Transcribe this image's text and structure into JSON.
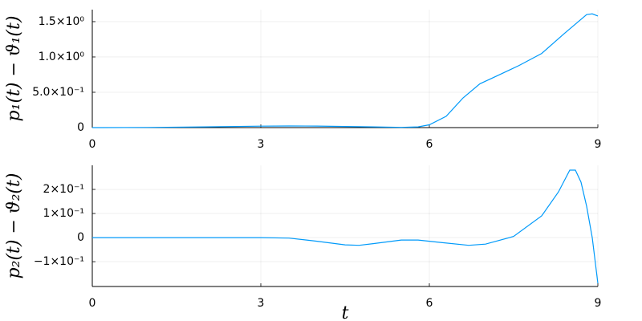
{
  "chart_data": [
    {
      "type": "line",
      "ylabel": "p₁(t) − ϑ₁(t)",
      "color": "#009afa",
      "grid": true,
      "x": [
        0,
        1,
        2,
        3,
        3.5,
        4,
        5,
        5.5,
        5.8,
        6,
        6.3,
        6.6,
        6.9,
        7.2,
        7.6,
        8,
        8.4,
        8.8,
        8.9,
        9
      ],
      "values": [
        0,
        0.002,
        0.01,
        0.02,
        0.023,
        0.022,
        0.01,
        0.003,
        0.01,
        0.04,
        0.16,
        0.42,
        0.62,
        0.73,
        0.88,
        1.05,
        1.33,
        1.6,
        1.61,
        1.58
      ],
      "xlim": [
        0,
        9
      ],
      "xticks": [
        0,
        3,
        6,
        9
      ],
      "ylim": [
        0,
        1.67
      ],
      "yticks": [
        0,
        {
          "value": 0.5,
          "label": "5.0×10⁻¹"
        },
        {
          "value": 1.0,
          "label": "1.0×10⁰"
        },
        {
          "value": 1.5,
          "label": "1.5×10⁰"
        }
      ]
    },
    {
      "type": "line",
      "ylabel": "p₂(t) − ϑ₂(t)",
      "xlabel": "t",
      "color": "#009afa",
      "grid": true,
      "x": [
        0,
        1,
        2,
        3,
        3.5,
        4,
        4.5,
        4.75,
        5,
        5.5,
        5.8,
        6.2,
        6.7,
        7,
        7.5,
        8,
        8.3,
        8.5,
        8.6,
        8.7,
        8.8,
        8.9,
        9
      ],
      "values": [
        0,
        0,
        0,
        0,
        -0.002,
        -0.015,
        -0.03,
        -0.032,
        -0.025,
        -0.01,
        -0.01,
        -0.02,
        -0.032,
        -0.027,
        0.005,
        0.09,
        0.19,
        0.28,
        0.28,
        0.23,
        0.13,
        0.0,
        -0.19
      ],
      "xlim": [
        0,
        9
      ],
      "xticks": [
        0,
        3,
        6,
        9
      ],
      "ylim": [
        -0.203,
        0.3
      ],
      "yticks": [
        {
          "value": -0.1,
          "label": "−1×10⁻¹"
        },
        0,
        {
          "value": 0.1,
          "label": "1×10⁻¹"
        },
        {
          "value": 0.2,
          "label": "2×10⁻¹"
        }
      ]
    }
  ]
}
